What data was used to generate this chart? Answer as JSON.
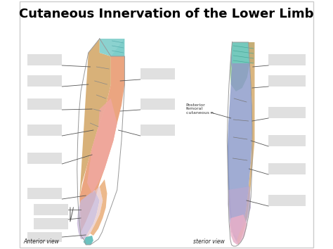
{
  "title": "Cutaneous Innervation of the Lower Limb",
  "title_fontsize": 13,
  "title_fontweight": "bold",
  "bg_color": "#ffffff",
  "anterior_view_label": "Anterior view",
  "posterior_view_label": "sterior view",
  "posterior_femoral_label": "Posterior\nfemoral\ncutaneous n."
}
